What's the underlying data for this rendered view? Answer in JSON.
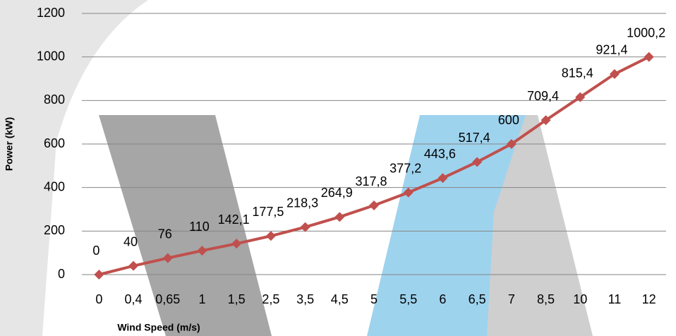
{
  "chart_data": {
    "type": "line",
    "x_label": "Wind Speed (m/s)",
    "y_label": "Power (kW)",
    "categories": [
      "0",
      "0,4",
      "0,65",
      "1",
      "1,5",
      "2,5",
      "3,5",
      "4,5",
      "5",
      "5,5",
      "6",
      "6,5",
      "7",
      "8,5",
      "10",
      "11",
      "12"
    ],
    "values": [
      0,
      40,
      76,
      110,
      142.1,
      177.5,
      218.3,
      264.9,
      317.8,
      377.2,
      443.6,
      517.4,
      600,
      709.4,
      815.4,
      921.4,
      1000.2
    ],
    "value_labels": [
      "0",
      "40",
      "76",
      "110",
      "142,1",
      "177,5",
      "218,3",
      "264,9",
      "317,8",
      "377,2",
      "443,6",
      "517,4",
      "600",
      "709,4",
      "815,4",
      "921,4",
      "1000,2"
    ],
    "color": "#c0504d",
    "ylim": [
      0,
      1200
    ],
    "yticks": [
      0,
      200,
      400,
      600,
      800,
      1000,
      1200
    ],
    "grid": true
  }
}
